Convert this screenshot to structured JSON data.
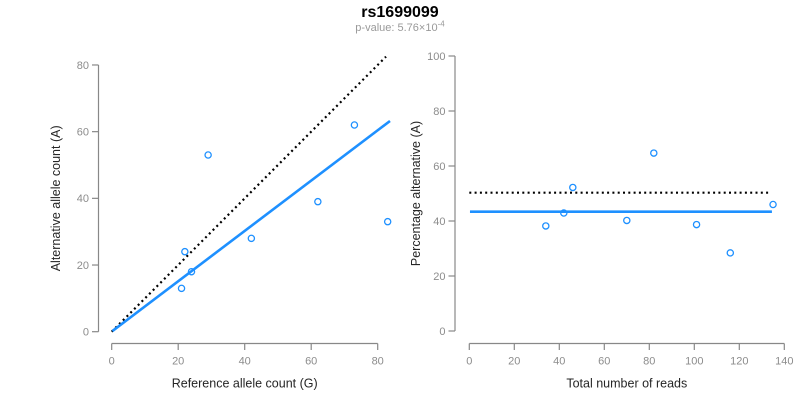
{
  "header": {
    "title": "rs1699099",
    "pvalue_prefix": "p-value: 5.76×10",
    "pvalue_exponent": "-4"
  },
  "colors": {
    "accent_blue": "#1E90FF",
    "dotted_black": "#000000",
    "axis_line_gray": "#888888",
    "tick_label_gray": "#8C8C8C",
    "axis_title_dark": "#262626",
    "subtitle_gray": "#999999"
  },
  "chart_data": [
    {
      "type": "scatter",
      "xlabel": "Reference allele count (G)",
      "ylabel": "Alternative allele count (A)",
      "xticks": [
        0,
        20,
        40,
        60,
        80
      ],
      "yticks": [
        0,
        20,
        40,
        60,
        80
      ],
      "xlim": [
        0,
        84
      ],
      "ylim": [
        0,
        83
      ],
      "grid": false,
      "points": [
        [
          21,
          13
        ],
        [
          24,
          18
        ],
        [
          22,
          24
        ],
        [
          42,
          28
        ],
        [
          29,
          53
        ],
        [
          62,
          39
        ],
        [
          83,
          33
        ],
        [
          73,
          62
        ]
      ],
      "lines": [
        {
          "name": "identity-line",
          "style": "dotted",
          "color": "#000000",
          "x1": 0,
          "y1": 0,
          "x2": 82.5,
          "y2": 82.5
        },
        {
          "name": "fit-line",
          "style": "solid",
          "color": "#1E90FF",
          "x1": 0.2,
          "y1": 0.2,
          "x2": 83.7,
          "y2": 63.2
        }
      ]
    },
    {
      "type": "scatter",
      "xlabel": "Total number of reads",
      "ylabel": "Percentage alternative (A)",
      "xticks": [
        0,
        20,
        40,
        60,
        80,
        100,
        120,
        140
      ],
      "yticks": [
        0,
        20,
        40,
        60,
        80,
        100
      ],
      "xlim": [
        0,
        137
      ],
      "ylim": [
        0,
        100
      ],
      "grid": false,
      "points": [
        [
          34,
          38.2
        ],
        [
          42,
          42.9
        ],
        [
          46,
          52.2
        ],
        [
          70,
          40.2
        ],
        [
          82,
          64.7
        ],
        [
          101,
          38.7
        ],
        [
          116,
          28.4
        ],
        [
          135,
          46
        ]
      ],
      "lines": [
        {
          "name": "null-line",
          "style": "dotted",
          "color": "#000000",
          "x1": 0,
          "y1": 50.3,
          "x2": 133,
          "y2": 50.3
        },
        {
          "name": "fit-line",
          "style": "solid",
          "color": "#1E90FF",
          "x1": 0.3,
          "y1": 43.4,
          "x2": 134.5,
          "y2": 43.4
        }
      ]
    }
  ]
}
